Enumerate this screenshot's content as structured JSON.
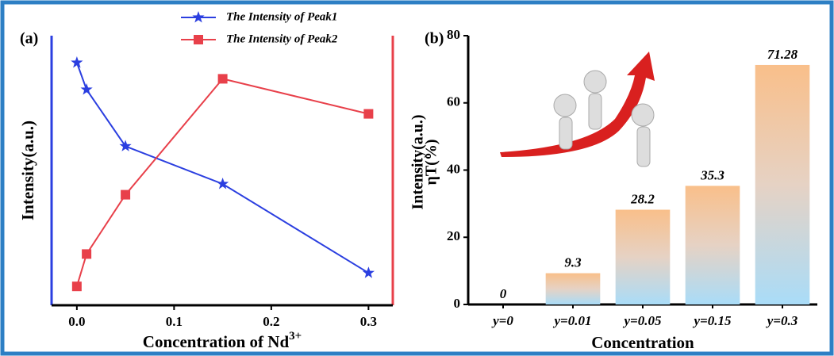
{
  "chart_data": [
    {
      "type": "line",
      "title": "(a)",
      "y_label": "Intensity(a.u.)",
      "x_label": "Concentration of Nd",
      "x_label_superscript": "3+",
      "x": [
        0,
        0.01,
        0.05,
        0.15,
        0.3
      ],
      "series": [
        {
          "name": "The Intensity of Peak1",
          "color": "#2b3fe0",
          "marker": "star",
          "values": [
            0.9,
            0.8,
            0.59,
            0.45,
            0.12
          ]
        },
        {
          "name": "The Intensity of Peak2",
          "color": "#e8404a",
          "marker": "square",
          "values": [
            0.07,
            0.19,
            0.41,
            0.84,
            0.71
          ]
        }
      ],
      "xlim": [
        -0.026,
        0.325
      ],
      "ylim": [
        0,
        1
      ],
      "xticks": [
        {
          "value": 0,
          "label": "0.0"
        },
        0.1,
        0.2,
        0.3
      ]
    },
    {
      "type": "bar",
      "title": "(b)",
      "y_label": "ηT(%)",
      "y_label_overlay": "Intensity(a.u.)",
      "x_label": "Concentration",
      "categories": [
        "y=0",
        "y=0.01",
        "y=0.05",
        "y=0.15",
        "y=0.3"
      ],
      "values": [
        0,
        9.3,
        28.2,
        35.3,
        71.28
      ],
      "ylim": [
        0,
        80
      ],
      "yticks": [
        0,
        20,
        40,
        60,
        80
      ]
    }
  ]
}
